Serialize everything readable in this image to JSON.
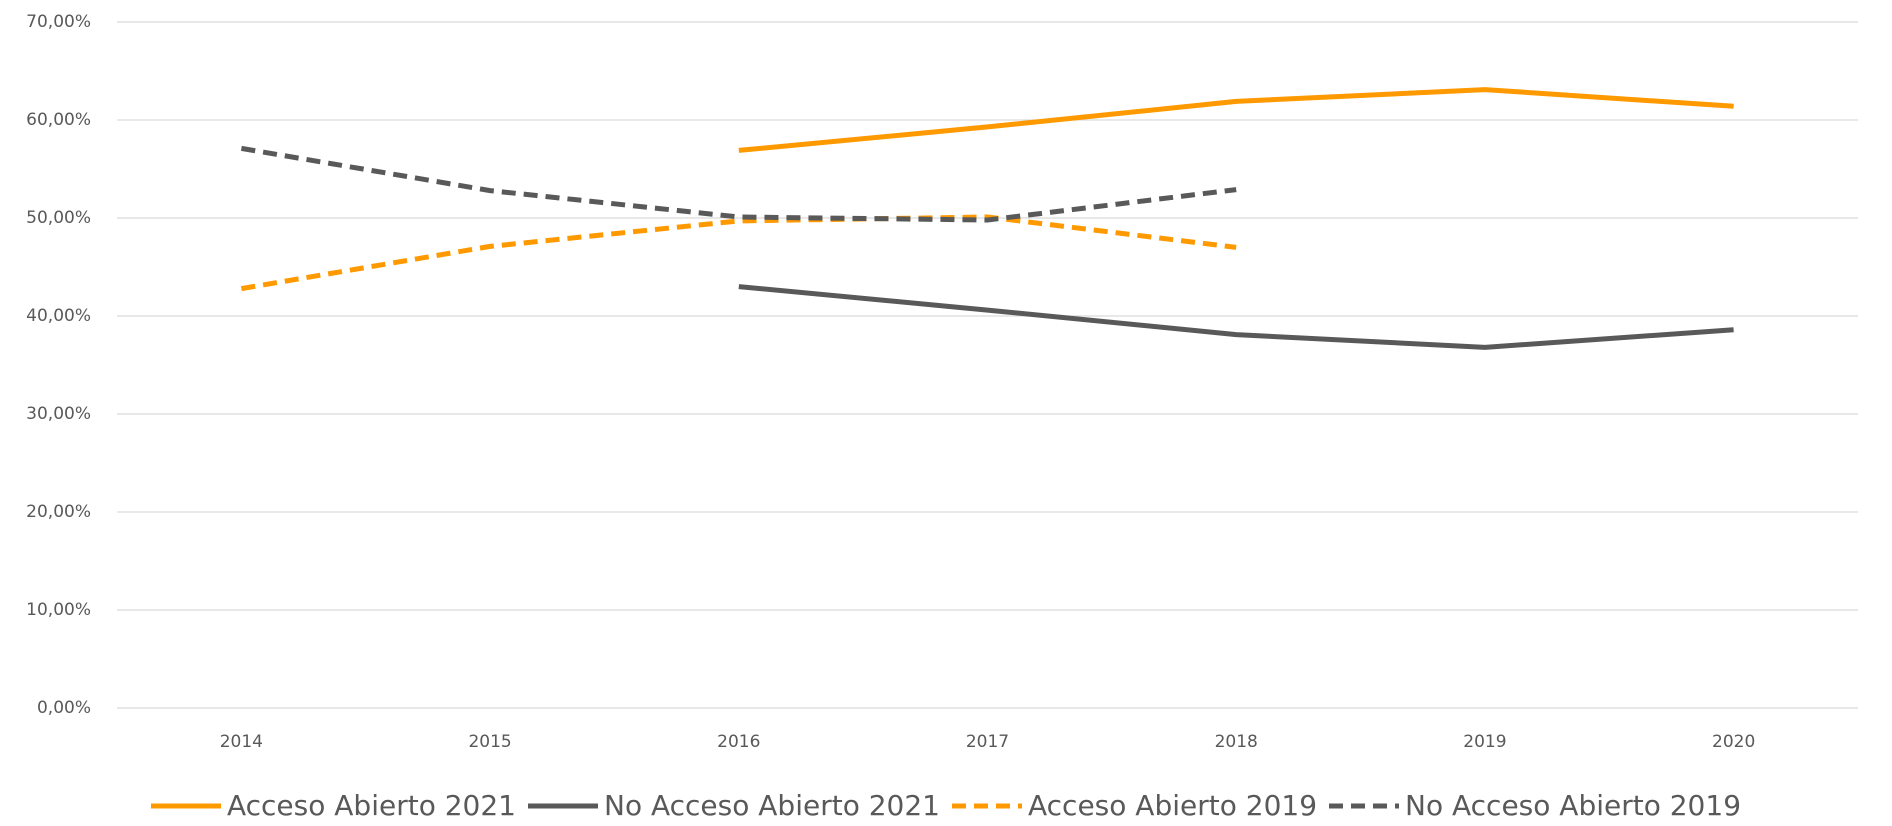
{
  "chart_data": {
    "type": "line",
    "categories": [
      "2014",
      "2015",
      "2016",
      "2017",
      "2018",
      "2019",
      "2020"
    ],
    "series": [
      {
        "name": "Acceso Abierto 2021",
        "color": "#ff9900",
        "style": "solid",
        "values": [
          null,
          null,
          56.9,
          59.3,
          61.9,
          63.1,
          61.4
        ]
      },
      {
        "name": "No Acceso Abierto 2021",
        "color": "#595959",
        "style": "solid",
        "values": [
          null,
          null,
          43.0,
          40.6,
          38.1,
          36.8,
          38.6
        ]
      },
      {
        "name": "Acceso Abierto 2019",
        "color": "#ff9900",
        "style": "dashed",
        "values": [
          42.8,
          47.1,
          49.7,
          50.1,
          47.0,
          null,
          null
        ]
      },
      {
        "name": "No Acceso Abierto 2019",
        "color": "#595959",
        "style": "dashed",
        "values": [
          57.1,
          52.8,
          50.1,
          49.8,
          52.9,
          null,
          null
        ]
      }
    ],
    "ylim": [
      0,
      70
    ],
    "yticks": [
      {
        "value": 0,
        "label": "0,00%"
      },
      {
        "value": 10,
        "label": "10,00%"
      },
      {
        "value": 20,
        "label": "20,00%"
      },
      {
        "value": 30,
        "label": "30,00%"
      },
      {
        "value": 40,
        "label": "40,00%"
      },
      {
        "value": 50,
        "label": "50,00%"
      },
      {
        "value": 60,
        "label": "60,00%"
      },
      {
        "value": 70,
        "label": "70,00%"
      }
    ],
    "grid": true,
    "legend": "bottom"
  }
}
